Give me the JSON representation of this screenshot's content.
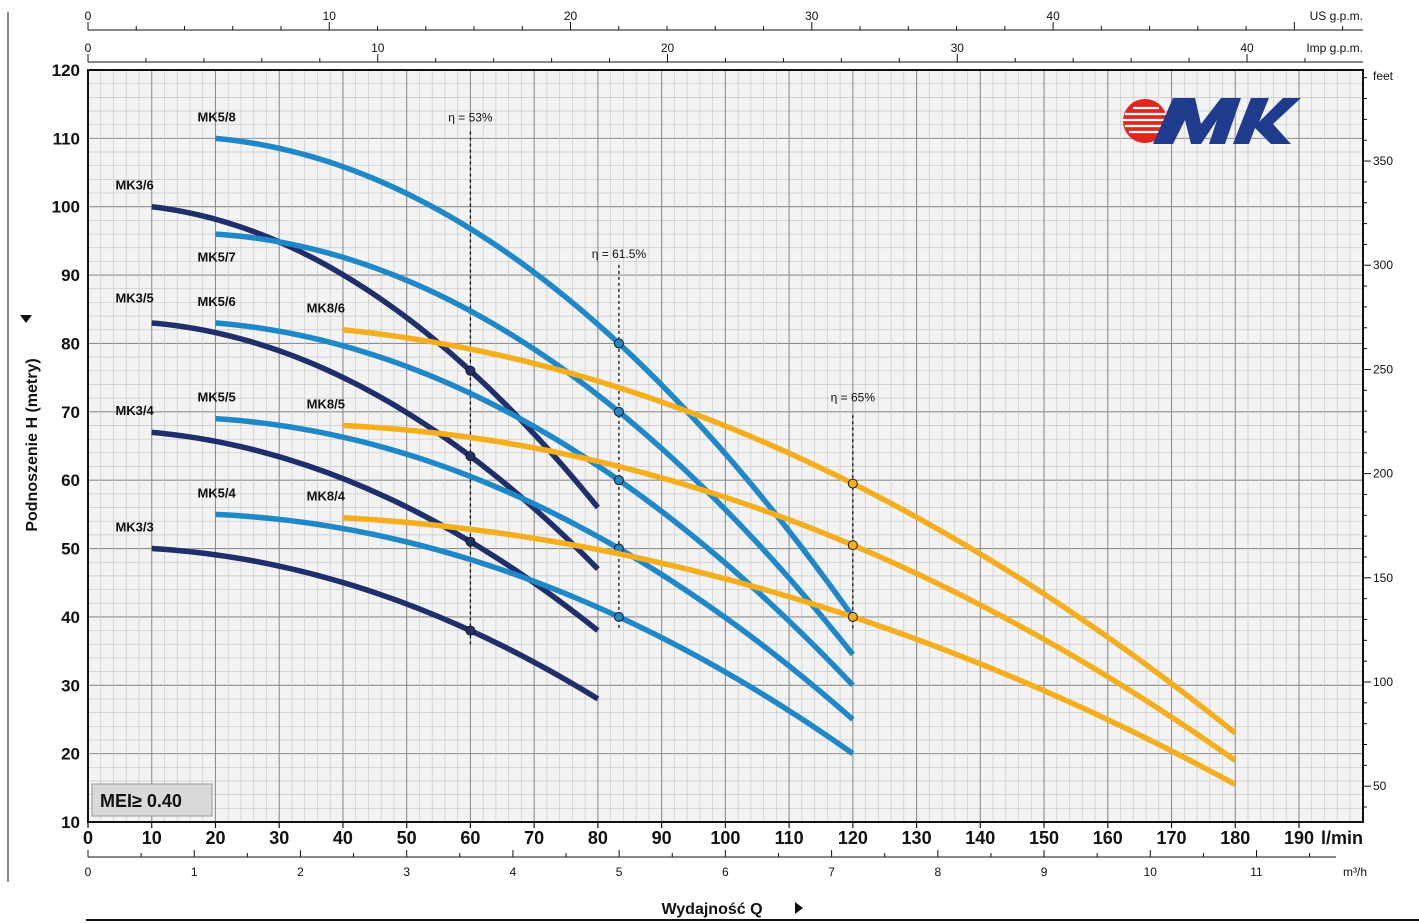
{
  "chart_data": {
    "type": "line",
    "x_unit": "l/min",
    "ylabel": "Podnoszenie H (metry)",
    "xlabel": "Wydajność Q",
    "xlim": [
      0,
      200
    ],
    "ylim": [
      10,
      120
    ],
    "x_ticks": [
      0,
      10,
      20,
      30,
      40,
      50,
      60,
      70,
      80,
      90,
      100,
      110,
      120,
      130,
      140,
      150,
      160,
      170,
      180,
      190
    ],
    "x_unit_label": "l/min",
    "y_ticks": [
      10,
      20,
      30,
      40,
      50,
      60,
      70,
      80,
      90,
      100,
      110,
      120
    ],
    "grid": true,
    "secondary_axes": {
      "m3h": {
        "label": "m³/h",
        "ticks": [
          0,
          1,
          2,
          3,
          4,
          5,
          6,
          7,
          8,
          9,
          10,
          11
        ]
      },
      "us_gpm": {
        "label": "US g.p.m.",
        "ticks": [
          0,
          10,
          20,
          30,
          40
        ]
      },
      "imp_gpm": {
        "label": "Imp g.p.m.",
        "ticks": [
          0,
          10,
          20,
          30,
          40
        ]
      },
      "feet": {
        "label": "feet",
        "ticks": [
          50,
          100,
          150,
          200,
          250,
          300,
          350
        ]
      }
    },
    "series": [
      {
        "name": "MK3/3",
        "color": "#1f2f6b",
        "points": [
          [
            10,
            50
          ],
          [
            60,
            38
          ],
          [
            80,
            28
          ]
        ]
      },
      {
        "name": "MK3/4",
        "color": "#1f2f6b",
        "points": [
          [
            10,
            67
          ],
          [
            60,
            51
          ],
          [
            80,
            38
          ]
        ]
      },
      {
        "name": "MK3/5",
        "color": "#1f2f6b",
        "points": [
          [
            10,
            83
          ],
          [
            60,
            63.5
          ],
          [
            80,
            47
          ]
        ]
      },
      {
        "name": "MK3/6",
        "color": "#1f2f6b",
        "points": [
          [
            10,
            100
          ],
          [
            60,
            76
          ],
          [
            80,
            56
          ]
        ]
      },
      {
        "name": "MK5/4",
        "color": "#1f88c9",
        "points": [
          [
            20,
            55
          ],
          [
            83.3,
            40
          ],
          [
            120,
            20
          ]
        ]
      },
      {
        "name": "MK5/5",
        "color": "#1f88c9",
        "points": [
          [
            20,
            69
          ],
          [
            83.3,
            50
          ],
          [
            120,
            25
          ]
        ]
      },
      {
        "name": "MK5/6",
        "color": "#1f88c9",
        "points": [
          [
            20,
            83
          ],
          [
            83.3,
            60
          ],
          [
            120,
            30
          ]
        ]
      },
      {
        "name": "MK5/7",
        "color": "#1f88c9",
        "points": [
          [
            20,
            96
          ],
          [
            83.3,
            70
          ],
          [
            120,
            34.5
          ]
        ]
      },
      {
        "name": "MK5/8",
        "color": "#1f88c9",
        "points": [
          [
            20,
            110
          ],
          [
            83.3,
            80
          ],
          [
            120,
            40
          ]
        ]
      },
      {
        "name": "MK8/4",
        "color": "#f5ae1d",
        "points": [
          [
            40,
            54.5
          ],
          [
            120,
            40
          ],
          [
            180,
            15.5
          ]
        ]
      },
      {
        "name": "MK8/5",
        "color": "#f5ae1d",
        "points": [
          [
            40,
            68
          ],
          [
            120,
            50.5
          ],
          [
            180,
            19
          ]
        ]
      },
      {
        "name": "MK8/6",
        "color": "#f5ae1d",
        "points": [
          [
            40,
            82
          ],
          [
            120,
            59.5
          ],
          [
            180,
            23
          ]
        ]
      }
    ],
    "efficiency_lines": [
      {
        "label": "η = 53%",
        "x": 60
      },
      {
        "label": "η = 61.5%",
        "x": 83.3
      },
      {
        "label": "η = 65%",
        "x": 120
      }
    ],
    "annotation": "MEI≥ 0.40",
    "logo_text": "MK"
  }
}
